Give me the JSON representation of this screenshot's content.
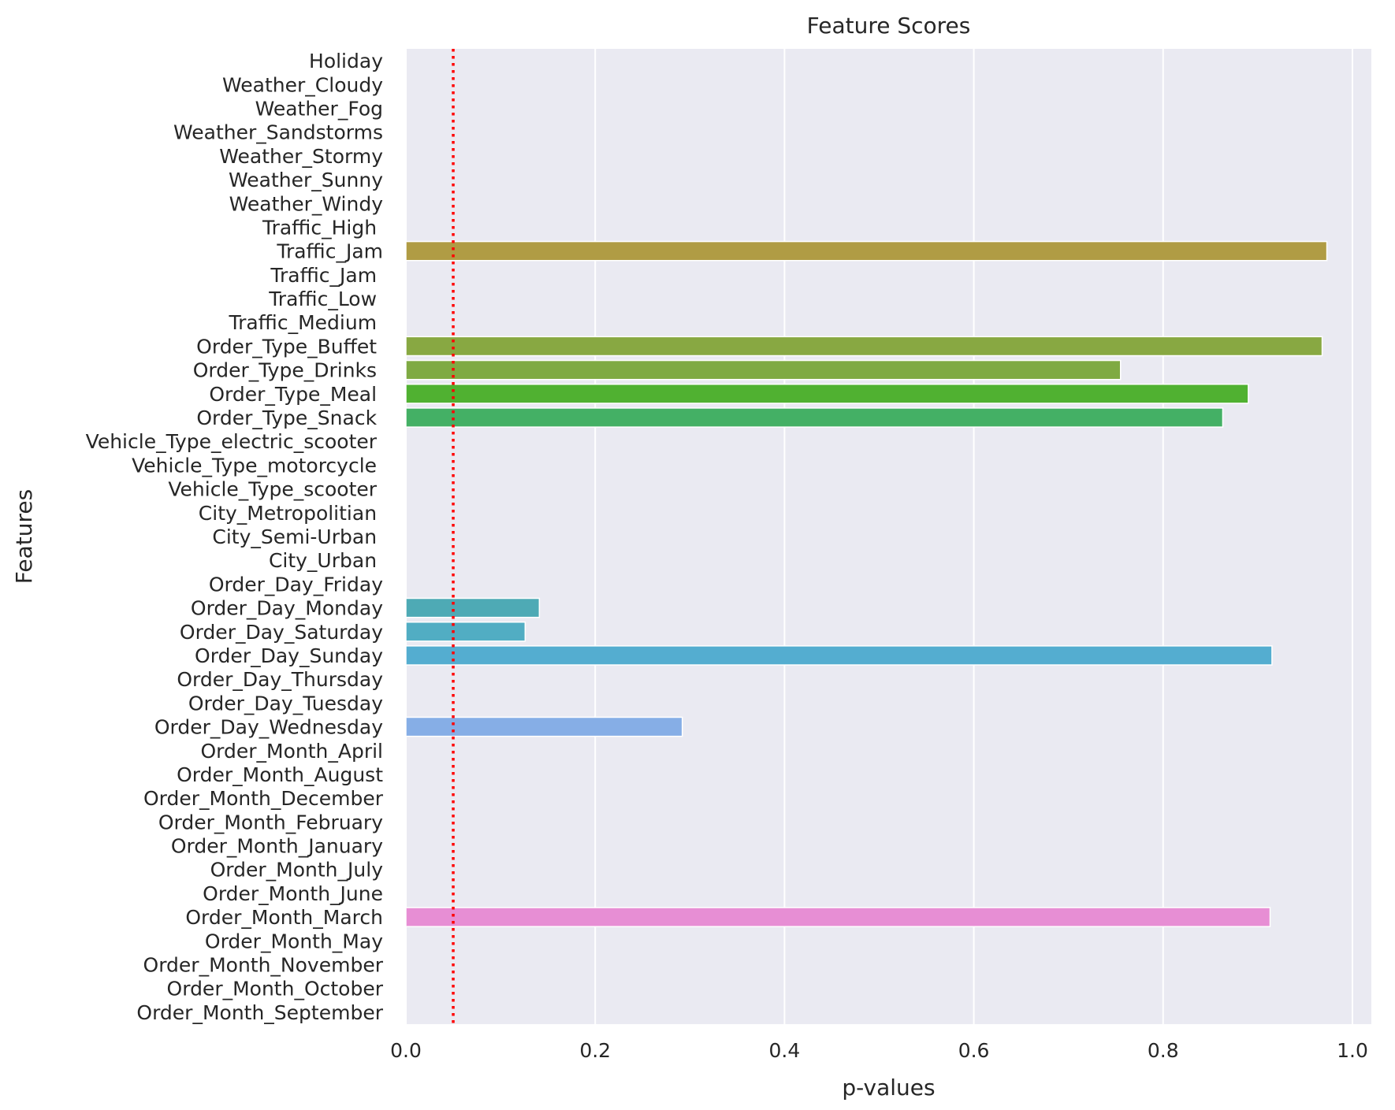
{
  "chart_data": {
    "type": "bar",
    "orientation": "horizontal",
    "title": "Feature Scores",
    "xlabel": "p-values",
    "ylabel": "Features",
    "xlim": [
      0.0,
      1.02
    ],
    "xticks": [
      "0.0",
      "0.2",
      "0.4",
      "0.6",
      "0.8",
      "1.0"
    ],
    "xtick_values": [
      0.0,
      0.2,
      0.4,
      0.6,
      0.8,
      1.0
    ],
    "grid": true,
    "reference_line": {
      "x": 0.05,
      "color": "#ff0000",
      "style": "dotted"
    },
    "categories": [
      "Holiday",
      "Weather_Cloudy",
      "Weather_Fog",
      "Weather_Sandstorms",
      "Weather_Stormy",
      "Weather_Sunny",
      "Weather_Windy",
      "Traffic_High ",
      "Traffic_Jam",
      "Traffic_Jam ",
      "Traffic_Low ",
      "Traffic_Medium ",
      "Order_Type_Buffet ",
      "Order_Type_Drinks ",
      "Order_Type_Meal ",
      "Order_Type_Snack ",
      "Vehicle_Type_electric_scooter ",
      "Vehicle_Type_motorcycle ",
      "Vehicle_Type_scooter ",
      "City_Metropolitian ",
      "City_Semi-Urban ",
      "City_Urban ",
      "Order_Day_Friday",
      "Order_Day_Monday",
      "Order_Day_Saturday",
      "Order_Day_Sunday",
      "Order_Day_Thursday",
      "Order_Day_Tuesday",
      "Order_Day_Wednesday",
      "Order_Month_April",
      "Order_Month_August",
      "Order_Month_December",
      "Order_Month_February",
      "Order_Month_January",
      "Order_Month_July",
      "Order_Month_June",
      "Order_Month_March",
      "Order_Month_May",
      "Order_Month_November",
      "Order_Month_October",
      "Order_Month_September"
    ],
    "values": [
      0,
      0,
      0,
      0,
      0,
      0,
      0,
      0,
      0.973,
      0,
      0,
      0,
      0.968,
      0.755,
      0.89,
      0.863,
      0,
      0,
      0,
      0,
      0,
      0,
      0,
      0.141,
      0.126,
      0.915,
      0,
      0,
      0.292,
      0,
      0,
      0,
      0,
      0,
      0,
      0,
      0.913,
      0,
      0,
      0,
      0
    ],
    "colors": [
      "#f77189",
      "#f7754f",
      "#e8824a",
      "#d88c31",
      "#c89532",
      "#bb9832",
      "#ad9c32",
      "#a19f32",
      "#b09c44",
      "#88a331",
      "#77a831",
      "#5fac31",
      "#88a842",
      "#7faa43",
      "#50b131",
      "#44b065",
      "#35ae87",
      "#36ad97",
      "#37aba3",
      "#38a9ad",
      "#38a8b7",
      "#39a6c2",
      "#3aa4cc",
      "#4eaab5",
      "#51adc3",
      "#54add0",
      "#6aa2ea",
      "#85a1e8",
      "#86aee6",
      "#a08ef4",
      "#b087f4",
      "#cd79f4",
      "#e06ff4",
      "#f36af0",
      "#f56be0",
      "#f56dd0",
      "#e78ed4",
      "#f56eb2",
      "#f670a3",
      "#f77194",
      "#f77189"
    ]
  }
}
